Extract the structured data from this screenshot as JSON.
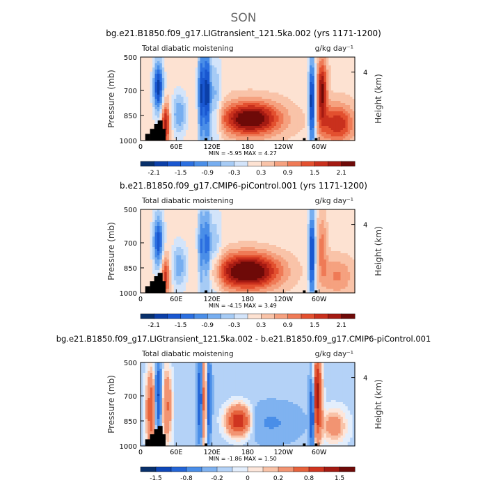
{
  "season": "SON",
  "chart_data": [
    {
      "type": "heatmap",
      "title": "bg.e21.B1850.f09_g17.LIGtransient_121.5ka.002 (yrs 1171-1200)",
      "subtitle_left": "Total diabatic moistening",
      "units": "g/kg day⁻¹",
      "xlabel": "",
      "ylabel": "Pressure (mb)",
      "ylabel_right": "Height (km)",
      "xticks": [
        "0",
        "60E",
        "120E",
        "180",
        "120W",
        "60W"
      ],
      "xtick_lon": [
        0,
        60,
        120,
        180,
        240,
        300
      ],
      "xlim": [
        0,
        360
      ],
      "yticks": [
        "500",
        "700",
        "850",
        "1000"
      ],
      "ytick_values": [
        500,
        700,
        850,
        1000
      ],
      "ylim": [
        1000,
        500
      ],
      "right_ticks": [
        "4"
      ],
      "stats": "MIN =   -5.95   MAX =    4.27",
      "colorbar": {
        "labels": [
          "-2.1",
          "-1.5",
          "-0.9",
          "-0.3",
          "0.3",
          "0.9",
          "1.5",
          "2.1"
        ],
        "levels": [
          -2.4,
          -2.1,
          -1.8,
          -1.5,
          -1.2,
          -0.9,
          -0.6,
          -0.3,
          0,
          0.3,
          0.6,
          0.9,
          1.2,
          1.5,
          1.8,
          2.1,
          2.4
        ]
      },
      "features": [
        {
          "lon": 30,
          "p": 680,
          "dlon": 6,
          "dp": 110,
          "v": -2.2
        },
        {
          "lon": 42,
          "p": 900,
          "dlon": 5,
          "dp": 90,
          "v": 1.8
        },
        {
          "lon": 65,
          "p": 840,
          "dlon": 9,
          "dp": 90,
          "v": -1.1
        },
        {
          "lon": 102,
          "p": 730,
          "dlon": 4,
          "dp": 220,
          "v": -2.0
        },
        {
          "lon": 112,
          "p": 730,
          "dlon": 4,
          "dp": 220,
          "v": -2.0
        },
        {
          "lon": 125,
          "p": 780,
          "dlon": 8,
          "dp": 200,
          "v": -0.9
        },
        {
          "lon": 185,
          "p": 870,
          "dlon": 35,
          "dp": 70,
          "v": 2.4
        },
        {
          "lon": 288,
          "p": 780,
          "dlon": 4,
          "dp": 200,
          "v": -2.4
        },
        {
          "lon": 305,
          "p": 700,
          "dlon": 6,
          "dp": 130,
          "v": 2.0
        },
        {
          "lon": 330,
          "p": 900,
          "dlon": 20,
          "dp": 80,
          "v": 1.6
        }
      ],
      "background": 0.2,
      "terrain": [
        [
          12,
          960
        ],
        [
          20,
          930
        ],
        [
          27,
          900
        ],
        [
          33,
          880
        ],
        [
          38,
          930
        ],
        [
          110,
          985
        ],
        [
          275,
          985
        ],
        [
          295,
          985
        ]
      ]
    },
    {
      "type": "heatmap",
      "title": "b.e21.B1850.f09_g17.CMIP6-piControl.001 (yrs 1171-1200)",
      "subtitle_left": "Total diabatic moistening",
      "units": "g/kg day⁻¹",
      "xlabel": "",
      "ylabel": "Pressure (mb)",
      "ylabel_right": "Height (km)",
      "xticks": [
        "0",
        "60E",
        "120E",
        "180",
        "120W",
        "60W"
      ],
      "xtick_lon": [
        0,
        60,
        120,
        180,
        240,
        300
      ],
      "xlim": [
        0,
        360
      ],
      "yticks": [
        "500",
        "700",
        "850",
        "1000"
      ],
      "ytick_values": [
        500,
        700,
        850,
        1000
      ],
      "ylim": [
        1000,
        500
      ],
      "right_ticks": [
        "4"
      ],
      "stats": "MIN =   -4.15   MAX =    3.49",
      "colorbar": {
        "labels": [
          "-2.1",
          "-1.5",
          "-0.9",
          "-0.3",
          "0.3",
          "0.9",
          "1.5",
          "2.1"
        ],
        "levels": [
          -2.4,
          -2.1,
          -1.8,
          -1.5,
          -1.2,
          -0.9,
          -0.6,
          -0.3,
          0,
          0.3,
          0.6,
          0.9,
          1.2,
          1.5,
          1.8,
          2.1,
          2.4
        ]
      },
      "features": [
        {
          "lon": 30,
          "p": 690,
          "dlon": 6,
          "dp": 110,
          "v": -1.9
        },
        {
          "lon": 42,
          "p": 900,
          "dlon": 5,
          "dp": 90,
          "v": 1.5
        },
        {
          "lon": 65,
          "p": 840,
          "dlon": 9,
          "dp": 90,
          "v": -1.0
        },
        {
          "lon": 102,
          "p": 750,
          "dlon": 4,
          "dp": 200,
          "v": -1.4
        },
        {
          "lon": 112,
          "p": 750,
          "dlon": 4,
          "dp": 200,
          "v": -1.4
        },
        {
          "lon": 125,
          "p": 780,
          "dlon": 8,
          "dp": 200,
          "v": -0.7
        },
        {
          "lon": 180,
          "p": 870,
          "dlon": 38,
          "dp": 75,
          "v": 2.6
        },
        {
          "lon": 288,
          "p": 780,
          "dlon": 4,
          "dp": 200,
          "v": -2.2
        },
        {
          "lon": 305,
          "p": 720,
          "dlon": 6,
          "dp": 130,
          "v": 0.9
        },
        {
          "lon": 330,
          "p": 900,
          "dlon": 20,
          "dp": 80,
          "v": 0.8
        }
      ],
      "background": 0.15,
      "terrain": [
        [
          12,
          960
        ],
        [
          20,
          930
        ],
        [
          27,
          900
        ],
        [
          33,
          880
        ],
        [
          38,
          930
        ],
        [
          110,
          985
        ],
        [
          275,
          985
        ],
        [
          295,
          985
        ]
      ]
    },
    {
      "type": "heatmap",
      "title": "bg.e21.B1850.f09_g17.LIGtransient_121.5ka.002 - b.e21.B1850.f09_g17.CMIP6-piControl.001",
      "subtitle_left": "Total diabatic moistening",
      "units": "g/kg day⁻¹",
      "xlabel": "",
      "ylabel": "Pressure (mb)",
      "ylabel_right": "Height (km)",
      "xticks": [
        "0",
        "60E",
        "120E",
        "180",
        "120W",
        "60W"
      ],
      "xtick_lon": [
        0,
        60,
        120,
        180,
        240,
        300
      ],
      "xlim": [
        0,
        360
      ],
      "yticks": [
        "500",
        "700",
        "850",
        "1000"
      ],
      "ytick_values": [
        500,
        700,
        850,
        1000
      ],
      "ylim": [
        1000,
        500
      ],
      "right_ticks": [
        "4"
      ],
      "stats": "MIN =   -1.86   MAX =    1.50",
      "colorbar": {
        "labels": [
          "-1.5",
          "-0.8",
          "-0.2",
          "0",
          "0.2",
          "0.8",
          "1.5"
        ],
        "levels": [
          -2.0,
          -1.5,
          -1.2,
          -0.8,
          -0.5,
          -0.2,
          -0.1,
          0,
          0.1,
          0.2,
          0.5,
          0.8,
          1.2,
          1.5,
          2.0
        ]
      },
      "features": [
        {
          "lon": 18,
          "p": 780,
          "dlon": 6,
          "dp": 160,
          "v": 0.9
        },
        {
          "lon": 30,
          "p": 700,
          "dlon": 4,
          "dp": 150,
          "v": -1.2
        },
        {
          "lon": 44,
          "p": 760,
          "dlon": 6,
          "dp": 150,
          "v": 0.7
        },
        {
          "lon": 100,
          "p": 720,
          "dlon": 3,
          "dp": 200,
          "v": -1.1
        },
        {
          "lon": 107,
          "p": 720,
          "dlon": 3,
          "dp": 200,
          "v": 0.9
        },
        {
          "lon": 115,
          "p": 720,
          "dlon": 3,
          "dp": 200,
          "v": -1.0
        },
        {
          "lon": 165,
          "p": 850,
          "dlon": 14,
          "dp": 60,
          "v": 1.3
        },
        {
          "lon": 220,
          "p": 860,
          "dlon": 30,
          "dp": 70,
          "v": -0.4
        },
        {
          "lon": 297,
          "p": 700,
          "dlon": 5,
          "dp": 170,
          "v": 1.5
        },
        {
          "lon": 288,
          "p": 800,
          "dlon": 3,
          "dp": 150,
          "v": -1.4
        },
        {
          "lon": 325,
          "p": 880,
          "dlon": 15,
          "dp": 70,
          "v": 0.5
        }
      ],
      "background": -0.15,
      "terrain": [
        [
          12,
          960
        ],
        [
          20,
          930
        ],
        [
          27,
          900
        ],
        [
          33,
          880
        ],
        [
          38,
          930
        ],
        [
          110,
          985
        ],
        [
          275,
          985
        ],
        [
          295,
          985
        ]
      ]
    }
  ]
}
